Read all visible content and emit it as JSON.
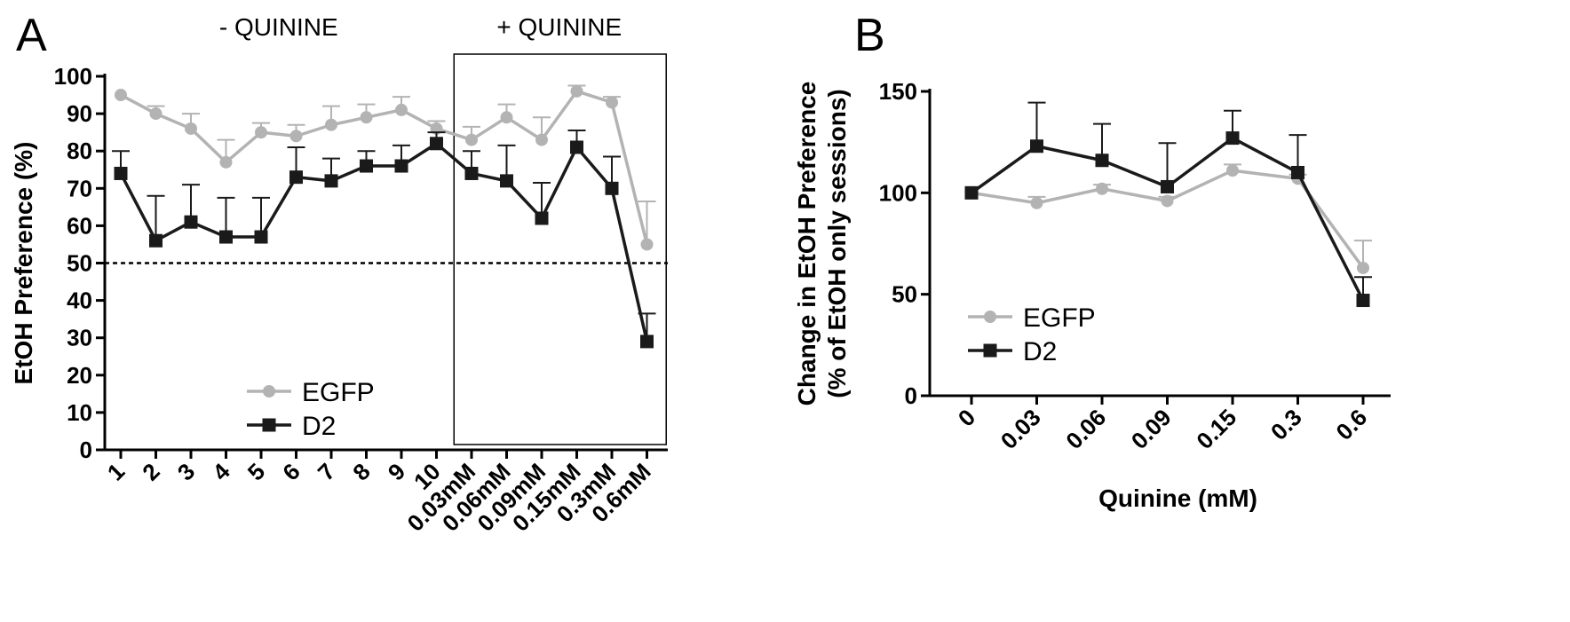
{
  "chart_data": [
    {
      "panel": "A",
      "type": "line",
      "ylabel": "EtOH Preference (%)",
      "xlabel": "",
      "ylim": [
        0,
        100
      ],
      "yticks": [
        0,
        10,
        20,
        30,
        40,
        50,
        60,
        70,
        80,
        90,
        100
      ],
      "categories": [
        "1",
        "2",
        "3",
        "4",
        "5",
        "6",
        "7",
        "8",
        "9",
        "10",
        "0.03mM",
        "0.06mM",
        "0.09mM",
        "0.15mM",
        "0.3mM",
        "0.6mM"
      ],
      "condition_labels": [
        {
          "text": "- QUININE",
          "categories": [
            1,
            10
          ]
        },
        {
          "text": "+ QUININE",
          "categories": [
            11,
            16
          ]
        }
      ],
      "reference_line": 50,
      "boxed_categories": [
        11,
        16
      ],
      "legend_position": "bottom-center",
      "series": [
        {
          "name": "EGFP",
          "color": "#b3b3b3",
          "marker": "circle",
          "values": [
            95,
            90,
            86,
            77,
            85,
            84,
            87,
            89,
            91,
            86,
            83,
            89,
            83,
            96,
            93,
            55
          ],
          "errors": [
            0,
            2,
            4,
            6,
            2.5,
            3,
            5,
            3.5,
            3.5,
            2,
            3.5,
            3.5,
            6,
            1.5,
            1.5,
            11.5
          ]
        },
        {
          "name": "D2",
          "color": "#1a1a1a",
          "marker": "square",
          "values": [
            74,
            56,
            61,
            57,
            57,
            73,
            72,
            76,
            76,
            82,
            74,
            72,
            62,
            81,
            70,
            29
          ],
          "errors": [
            6,
            12,
            10,
            10.5,
            10.5,
            8,
            6,
            4,
            5.5,
            3,
            6,
            9.5,
            9.5,
            4.5,
            8.5,
            7.5
          ]
        }
      ]
    },
    {
      "panel": "B",
      "type": "line",
      "ylabel": "Change in EtOH Preference",
      "ylabel2": "(% of EtOH only sessions)",
      "xlabel": "Quinine (mM)",
      "ylim": [
        0,
        150
      ],
      "yticks": [
        0,
        50,
        100,
        150
      ],
      "categories": [
        "0",
        "0.03",
        "0.06",
        "0.09",
        "0.15",
        "0.3",
        "0.6"
      ],
      "legend_position": "bottom-left",
      "series": [
        {
          "name": "EGFP",
          "color": "#b3b3b3",
          "marker": "circle",
          "values": [
            100,
            95,
            102,
            96,
            111,
            107,
            63
          ],
          "errors": [
            0,
            3,
            2,
            2,
            3,
            2,
            13.5
          ]
        },
        {
          "name": "D2",
          "color": "#1a1a1a",
          "marker": "square",
          "values": [
            100,
            123,
            116,
            103,
            127,
            110,
            47
          ],
          "errors": [
            0,
            21.5,
            18,
            21.5,
            13.5,
            18.5,
            11.5
          ]
        }
      ]
    }
  ]
}
